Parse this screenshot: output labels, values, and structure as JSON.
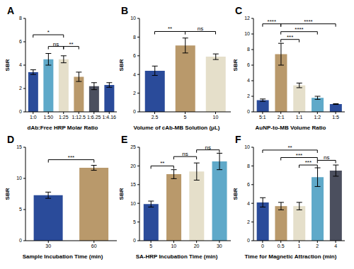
{
  "chart_data": [
    {
      "type": "bar",
      "title": "A",
      "x_label": "dAb:Free HRP Molar Ratio",
      "y_label": "SBR",
      "categories": [
        "1:0",
        "1:50",
        "1:25",
        "1:12.5",
        "1:6.25",
        "1:4.16"
      ],
      "values": [
        3.4,
        4.5,
        4.5,
        3.0,
        2.2,
        2.3
      ],
      "errors": [
        0.2,
        0.5,
        0.3,
        0.4,
        0.3,
        0.2
      ],
      "colors": [
        "#2a4b9a",
        "#5fa9c9",
        "#e5dfca",
        "#b9996b",
        "#4b4f5e",
        "#2a4b9a"
      ],
      "ylim": [
        0,
        8
      ],
      "yticks": [
        0,
        2,
        4,
        6,
        8
      ],
      "annotations": [
        {
          "from": "1:0",
          "to": "1:25",
          "y": 6.6,
          "text": "*"
        },
        {
          "from": "1:50",
          "to": "1:25",
          "y": 5.6,
          "text": "ns"
        },
        {
          "from": "1:25",
          "to": "1:12.5",
          "y": 5.6,
          "text": "**"
        }
      ]
    },
    {
      "type": "bar",
      "title": "B",
      "x_label": "Volume of cAb-MB Solution (μL)",
      "y_label": "SBR",
      "categories": [
        "2.5",
        "5",
        "10"
      ],
      "values": [
        4.4,
        7.1,
        5.9
      ],
      "errors": [
        0.5,
        0.8,
        0.3
      ],
      "colors": [
        "#2a4b9a",
        "#b9996b",
        "#e5dfca"
      ],
      "ylim": [
        0,
        10
      ],
      "yticks": [
        0,
        2,
        4,
        6,
        8,
        10
      ],
      "annotations": [
        {
          "from": "2.5",
          "to": "5",
          "y": 8.6,
          "text": "**"
        },
        {
          "from": "5",
          "to": "10",
          "y": 8.6,
          "text": "ns"
        }
      ]
    },
    {
      "type": "bar",
      "title": "C",
      "x_label": "AuNP-to-MB Volume Ratio",
      "y_label": "SBR",
      "categories": [
        "5:1",
        "2:1",
        "1:1",
        "1:2",
        "1:5"
      ],
      "values": [
        1.5,
        7.4,
        3.4,
        1.8,
        1.0
      ],
      "errors": [
        0.15,
        1.4,
        0.3,
        0.2,
        0.05
      ],
      "colors": [
        "#2a4b9a",
        "#b9996b",
        "#e5dfca",
        "#5fa9c9",
        "#2a4b9a"
      ],
      "ylim": [
        0,
        12
      ],
      "yticks": [
        0,
        2,
        4,
        6,
        8,
        10,
        12
      ],
      "annotations": [
        {
          "from": "5:1",
          "to": "2:1",
          "y": 11.3,
          "text": "****"
        },
        {
          "from": "2:1",
          "to": "1:5",
          "y": 11.3,
          "text": "****"
        },
        {
          "from": "2:1",
          "to": "1:2",
          "y": 10.3,
          "text": "****"
        },
        {
          "from": "2:1",
          "to": "1:1",
          "y": 9.3,
          "text": "***"
        }
      ]
    },
    {
      "type": "bar",
      "title": "D",
      "x_label": "Sample Incubation Time (min)",
      "y_label": "SBR",
      "categories": [
        "30",
        "60"
      ],
      "values": [
        7.3,
        11.7
      ],
      "errors": [
        0.5,
        0.4
      ],
      "colors": [
        "#2a4b9a",
        "#b9996b"
      ],
      "ylim": [
        0,
        15
      ],
      "yticks": [
        0,
        5,
        10,
        15
      ],
      "annotations": [
        {
          "from": "30",
          "to": "60",
          "y": 13.0,
          "text": "***"
        }
      ]
    },
    {
      "type": "bar",
      "title": "E",
      "x_label": "SA-HRP Incubation Time (min)",
      "y_label": "SBR",
      "categories": [
        "5",
        "10",
        "20",
        "30"
      ],
      "values": [
        9.8,
        17.8,
        18.5,
        21.2
      ],
      "errors": [
        0.8,
        1.2,
        2.3,
        2.2
      ],
      "colors": [
        "#2a4b9a",
        "#b9996b",
        "#e5dfca",
        "#5fa9c9"
      ],
      "ylim": [
        0,
        25
      ],
      "yticks": [
        0,
        5,
        10,
        15,
        20,
        25
      ],
      "annotations": [
        {
          "from": "5",
          "to": "10",
          "y": 20.0,
          "text": "**"
        },
        {
          "from": "10",
          "to": "20",
          "y": 22.5,
          "text": "ns"
        },
        {
          "from": "20",
          "to": "30",
          "y": 24.3,
          "text": "ns"
        }
      ]
    },
    {
      "type": "bar",
      "title": "F",
      "x_label": "Time for Magnetic Attraction (min)",
      "y_label": "SBR",
      "categories": [
        "0",
        "0.5",
        "1",
        "2",
        "4"
      ],
      "values": [
        4.1,
        3.7,
        3.7,
        6.8,
        7.5
      ],
      "errors": [
        0.5,
        0.4,
        0.4,
        1.0,
        0.6
      ],
      "colors": [
        "#2a4b9a",
        "#b9996b",
        "#e5dfca",
        "#5fa9c9",
        "#4b4f5e"
      ],
      "ylim": [
        0,
        10
      ],
      "yticks": [
        0,
        2,
        4,
        6,
        8,
        10
      ],
      "annotations": [
        {
          "from": "0",
          "to": "2",
          "y": 9.7,
          "text": "**"
        },
        {
          "from": "0.5",
          "to": "2",
          "y": 8.9,
          "text": "***"
        },
        {
          "from": "1",
          "to": "2",
          "y": 8.1,
          "text": "***"
        },
        {
          "from": "2",
          "to": "4",
          "y": 8.6,
          "text": "ns"
        }
      ]
    }
  ]
}
